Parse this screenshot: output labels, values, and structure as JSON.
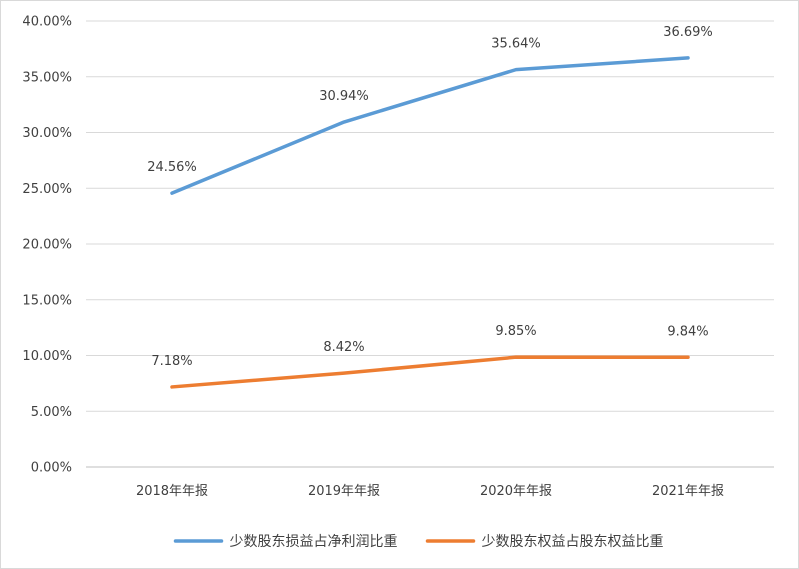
{
  "chart_data": {
    "type": "line",
    "categories": [
      "2018年年报",
      "2019年年报",
      "2020年年报",
      "2021年年报"
    ],
    "series": [
      {
        "name": "少数股东损益占净利润比重",
        "values": [
          24.56,
          30.94,
          35.64,
          36.69
        ],
        "labels": [
          "24.56%",
          "30.94%",
          "35.64%",
          "36.69%"
        ],
        "color": "#5b9bd5"
      },
      {
        "name": "少数股东权益占股东权益比重",
        "values": [
          7.18,
          8.42,
          9.85,
          9.84
        ],
        "labels": [
          "7.18%",
          "8.42%",
          "9.85%",
          "9.84%"
        ],
        "color": "#ed7d31"
      }
    ],
    "ylim": [
      0,
      40
    ],
    "yticks": [
      "0.00%",
      "5.00%",
      "10.00%",
      "15.00%",
      "20.00%",
      "25.00%",
      "30.00%",
      "35.00%",
      "40.00%"
    ],
    "grid": true,
    "legend": "bottom",
    "title": "",
    "xlabel": "",
    "ylabel": ""
  }
}
